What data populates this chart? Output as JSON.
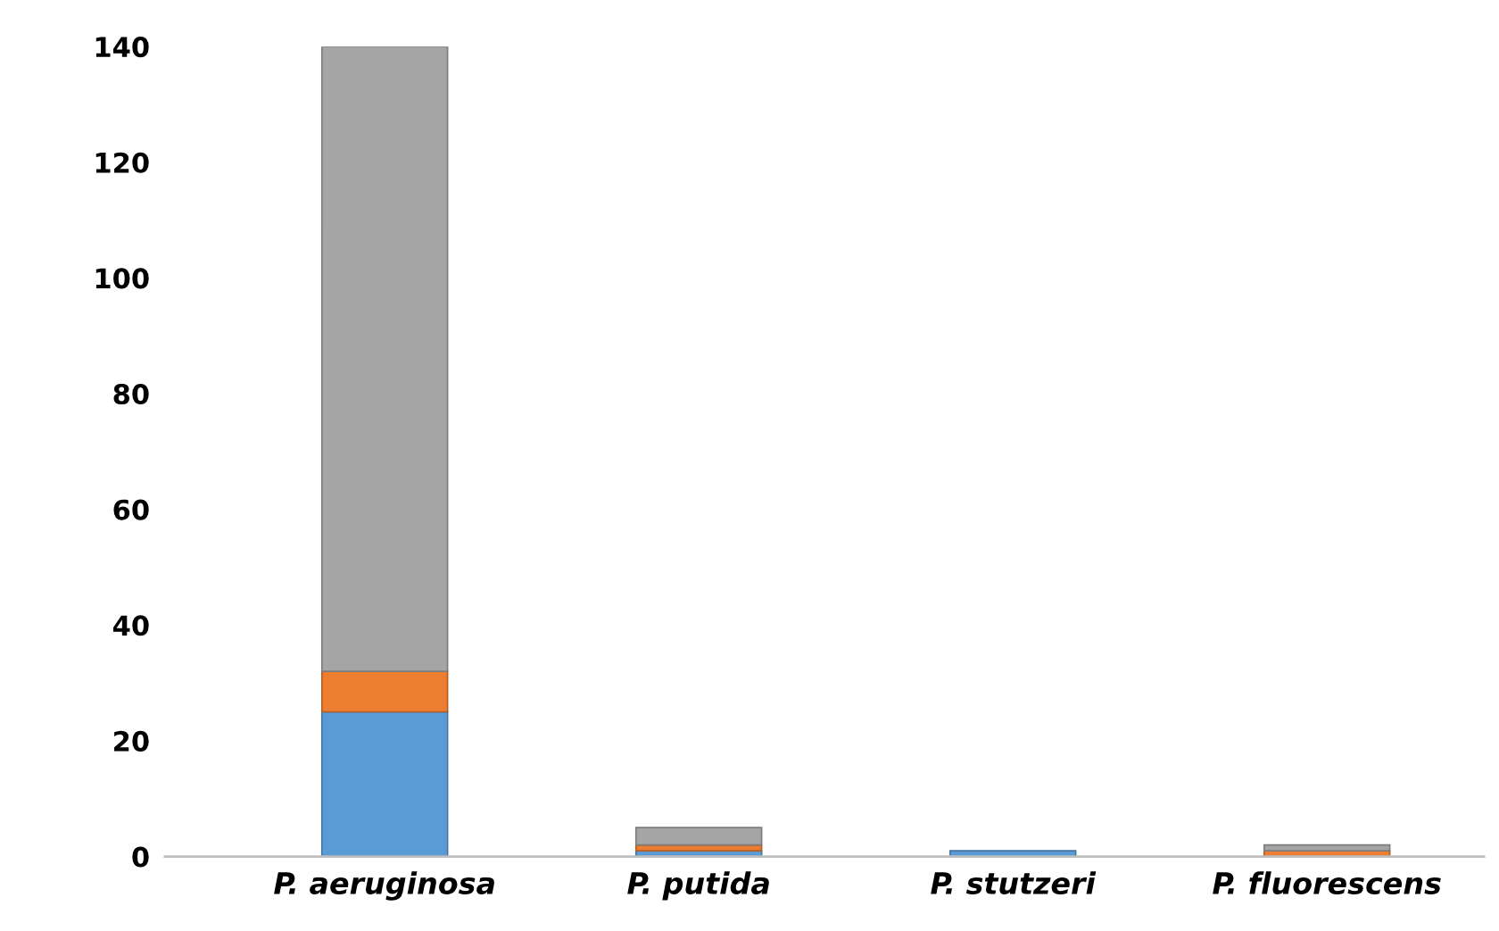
{
  "chart_data": {
    "type": "bar",
    "stacked": true,
    "categories": [
      "P. aeruginosa",
      "P. putida",
      "P. stutzeri",
      "P. fluorescens"
    ],
    "series": [
      {
        "color": "#5b9bd5",
        "values": [
          25,
          1,
          1,
          0
        ]
      },
      {
        "color": "#ed7d31",
        "values": [
          7,
          1,
          0,
          1
        ]
      },
      {
        "color": "#a5a5a5",
        "values": [
          108,
          3,
          0,
          1
        ]
      }
    ],
    "ylim": [
      0,
      140
    ],
    "yticks": [
      0,
      20,
      40,
      60,
      80,
      100,
      120,
      140
    ],
    "grid": false
  }
}
